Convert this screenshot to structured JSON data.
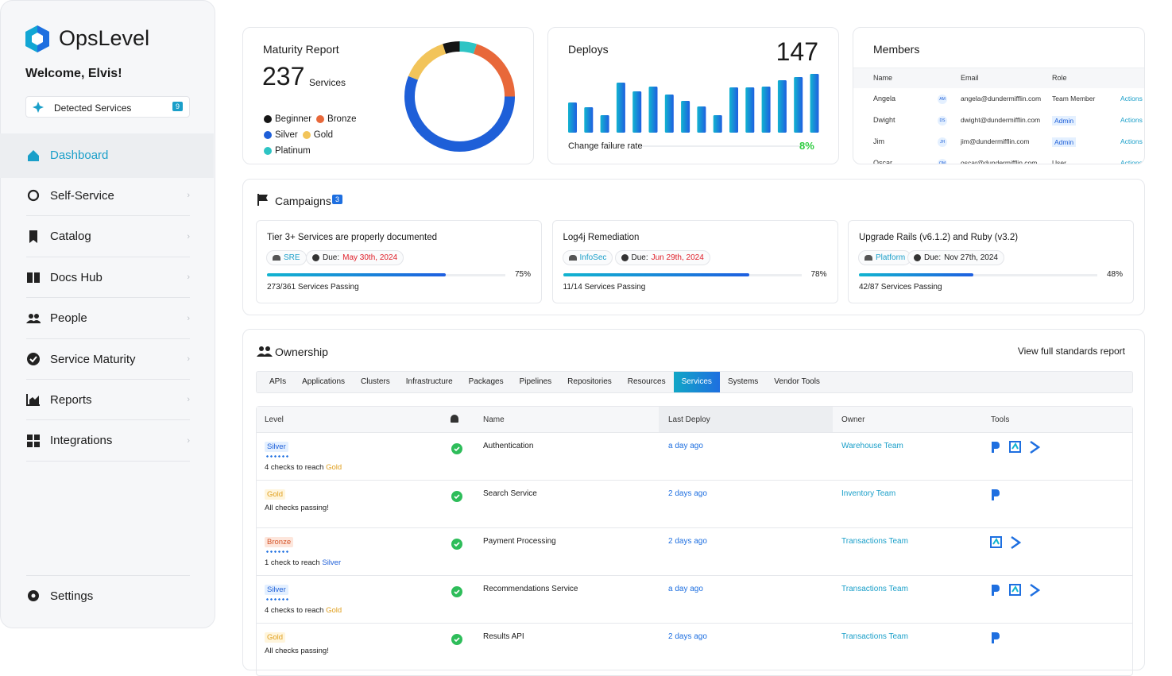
{
  "sidebar": {
    "brand": "OpsLevel",
    "welcome": "Welcome, Elvis!",
    "detected_label": "Detected Services",
    "detected_count": "9",
    "nav": [
      "Dashboard",
      "Self-Service",
      "Catalog",
      "Docs Hub",
      "People",
      "Service Maturity",
      "Reports",
      "Integrations"
    ],
    "settings": "Settings"
  },
  "maturity": {
    "title": "Maturity Report",
    "count": "237",
    "unit": "Services",
    "levels": [
      {
        "name": "Beginner",
        "color": "#151515",
        "value": 5
      },
      {
        "name": "Bronze",
        "color": "#e8683a",
        "value": 20
      },
      {
        "name": "Silver",
        "color": "#1e5fd8",
        "value": 56
      },
      {
        "name": "Gold",
        "color": "#f2c45a",
        "value": 14
      },
      {
        "name": "Platinum",
        "color": "#2ec4c4",
        "value": 5
      }
    ]
  },
  "deploys": {
    "title": "Deploys",
    "total": "147",
    "bars": [
      38,
      32,
      22,
      63,
      52,
      58,
      48,
      40,
      33,
      22,
      57,
      57,
      58,
      66,
      70,
      74
    ],
    "metric": "Change failure rate",
    "metric_value": "8%"
  },
  "members": {
    "title": "Members",
    "columns": [
      "Name",
      "Email",
      "Role"
    ],
    "rows": [
      {
        "name": "Angela",
        "initials": "AM",
        "email": "angela@dundermifflin.com",
        "role": "Team Member",
        "action": "Actions"
      },
      {
        "name": "Dwight",
        "initials": "DS",
        "email": "dwight@dundermifflin.com",
        "role": "Admin",
        "action": "Actions"
      },
      {
        "name": "Jim",
        "initials": "JH",
        "email": "jim@dundermifflin.com",
        "role": "Admin",
        "action": "Actions"
      },
      {
        "name": "Oscar",
        "initials": "OM",
        "email": "oscar@dundermifflin.com",
        "role": "User",
        "action": "Actions"
      }
    ]
  },
  "campaigns": {
    "title": "Campaigns",
    "count": "3",
    "due_label": "Due:",
    "items": [
      {
        "title": "Tier 3+ Services are properly documented",
        "team": "SRE",
        "due": "May 30th, 2024",
        "overdue": true,
        "progress": {
          "value": 75,
          "label": "75%"
        },
        "passing": "273/361 Services Passing"
      },
      {
        "title": "Log4j Remediation",
        "team": "InfoSec",
        "due": "Jun 29th, 2024",
        "overdue": true,
        "progress": {
          "value": 78,
          "label": "78%"
        },
        "passing": "11/14 Services Passing"
      },
      {
        "title": "Upgrade Rails (v6.1.2) and Ruby (v3.2)",
        "team": "Platform",
        "due": "Nov 27th, 2024",
        "overdue": false,
        "progress": {
          "value": 48,
          "label": "48%"
        },
        "passing": "42/87 Services Passing"
      }
    ]
  },
  "ownership": {
    "title": "Ownership",
    "report_link": "View full standards report",
    "tabs": [
      "APIs",
      "Applications",
      "Clusters",
      "Infrastructure",
      "Packages",
      "Pipelines",
      "Repositories",
      "Resources",
      "Services",
      "Systems",
      "Vendor Tools"
    ],
    "active_tab": 8,
    "columns": [
      "Level",
      "Name",
      "Last Deploy",
      "Owner",
      "Tools"
    ],
    "rows": [
      {
        "level": "Silver",
        "check_text": "4 checks to reach",
        "next_level": "Gold",
        "name": "Authentication",
        "last_deploy": "a day ago",
        "owner": "Warehouse Team"
      },
      {
        "level": "Gold",
        "check_text": "All checks passing!",
        "name": "Search Service",
        "last_deploy": "2 days ago",
        "owner": "Inventory Team"
      },
      {
        "level": "Bronze",
        "check_text": "1 check to reach",
        "next_level": "Silver",
        "name": "Payment Processing",
        "last_deploy": "2 days ago",
        "owner": "Transactions Team"
      },
      {
        "level": "Silver",
        "check_text": "4 checks to reach",
        "next_level": "Gold",
        "name": "Recommendations Service",
        "last_deploy": "a day ago",
        "owner": "Transactions Team"
      },
      {
        "level": "Gold",
        "check_text": "All checks passing!",
        "name": "Results API",
        "last_deploy": "2 days ago",
        "owner": "Transactions Team"
      }
    ]
  }
}
